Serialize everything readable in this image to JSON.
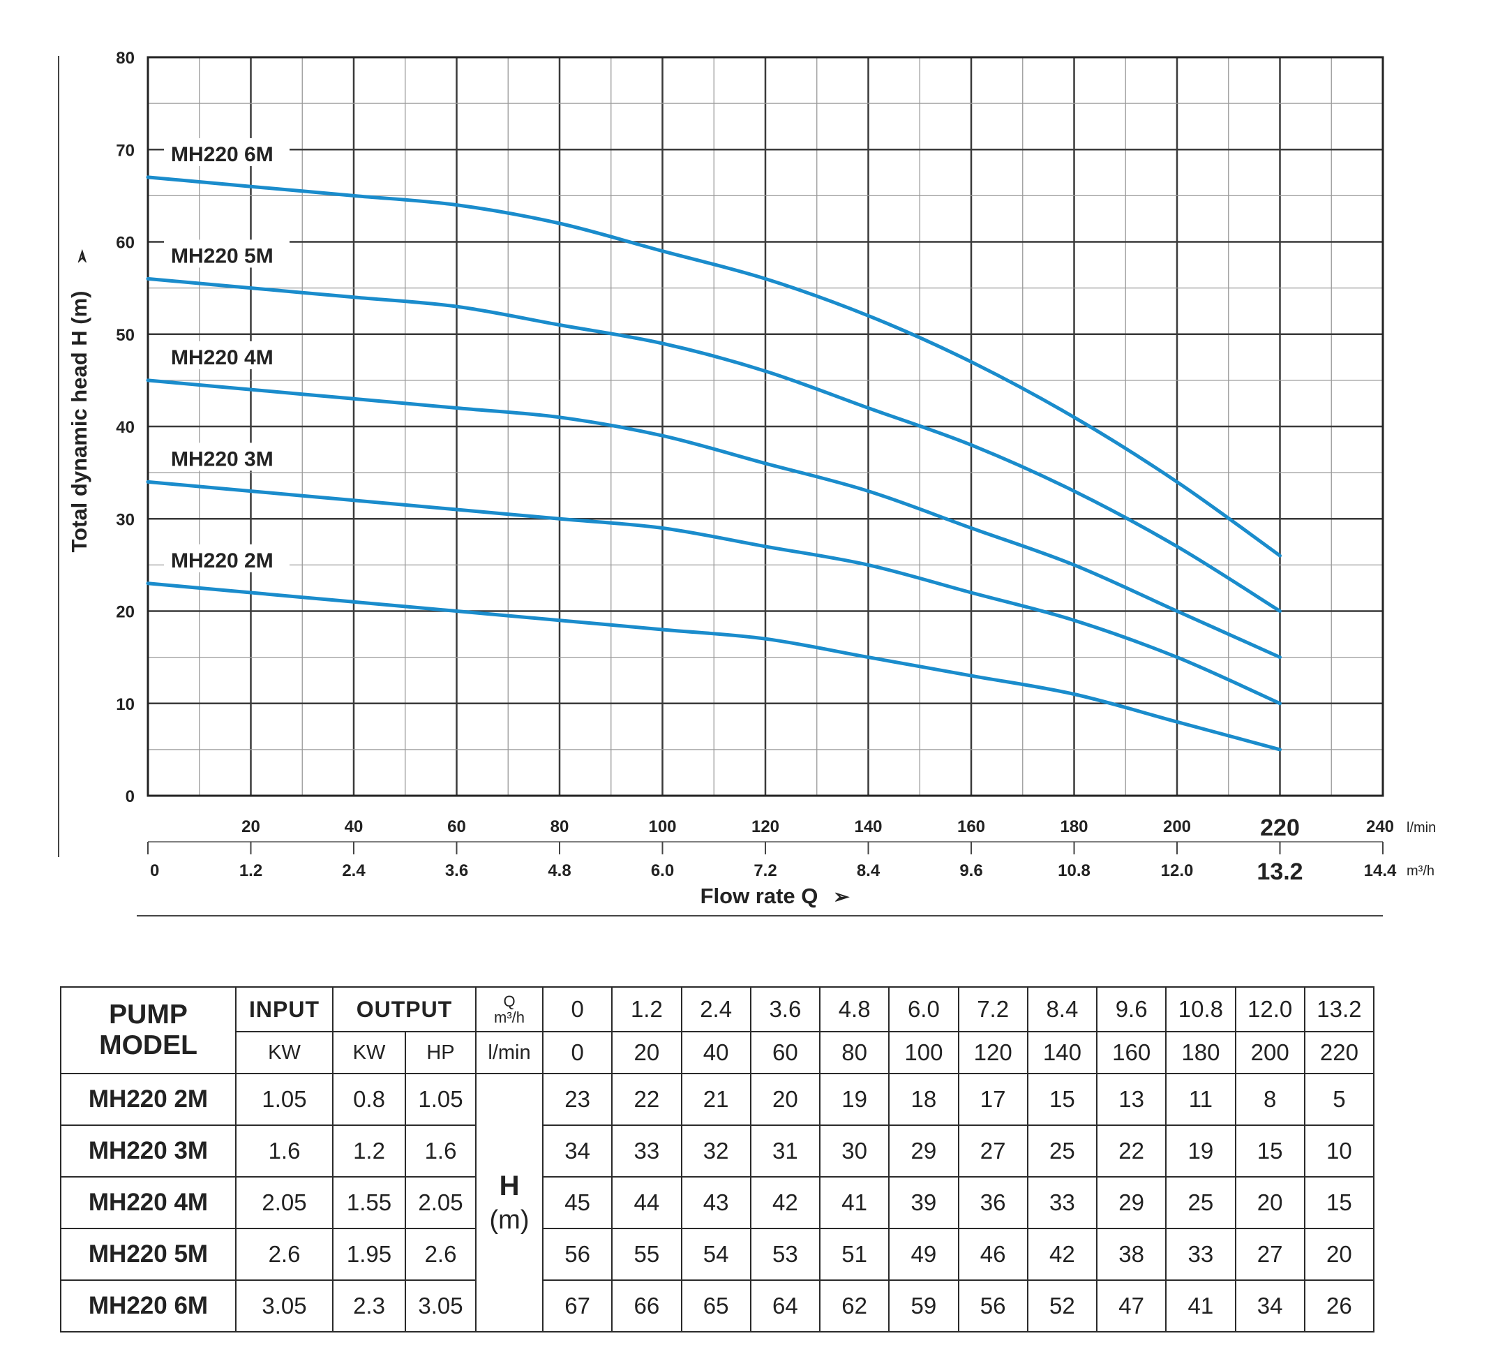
{
  "chart_data": {
    "type": "line",
    "ylabel": "Total dynamic head H (m)",
    "xlabel": "Flow rate Q",
    "ylim": [
      0,
      80
    ],
    "y_ticks": [
      "0",
      "10",
      "20",
      "30",
      "40",
      "50",
      "60",
      "70",
      "80"
    ],
    "x_lmin": [
      0,
      20,
      40,
      60,
      80,
      100,
      120,
      140,
      160,
      180,
      200,
      220
    ],
    "x_lmin_ticks": [
      "20",
      "40",
      "60",
      "80",
      "100",
      "120",
      "140",
      "160",
      "180",
      "200",
      "220",
      "240"
    ],
    "x_lmin_unit": "l/min",
    "x_m3h_ticks": [
      "0",
      "1.2",
      "2.4",
      "3.6",
      "4.8",
      "6.0",
      "7.2",
      "8.4",
      "9.6",
      "10.8",
      "12.0",
      "13.2",
      "14.4"
    ],
    "x_m3h_unit": "m³/h",
    "xlim": [
      0,
      240
    ],
    "grid": true,
    "line_color": "#1a8ccc",
    "series": [
      {
        "name": "MH220 6M",
        "values": [
          67,
          66,
          65,
          64,
          62,
          59,
          56,
          52,
          47,
          41,
          34,
          26
        ]
      },
      {
        "name": "MH220 5M",
        "values": [
          56,
          55,
          54,
          53,
          51,
          49,
          46,
          42,
          38,
          33,
          27,
          20
        ]
      },
      {
        "name": "MH220 4M",
        "values": [
          45,
          44,
          43,
          42,
          41,
          39,
          36,
          33,
          29,
          25,
          20,
          15
        ]
      },
      {
        "name": "MH220 3M",
        "values": [
          34,
          33,
          32,
          31,
          30,
          29,
          27,
          25,
          22,
          19,
          15,
          10
        ]
      },
      {
        "name": "MH220 2M",
        "values": [
          23,
          22,
          21,
          20,
          19,
          18,
          17,
          15,
          13,
          11,
          8,
          5
        ]
      }
    ]
  },
  "table": {
    "header": {
      "model": "PUMP MODEL",
      "input": "INPUT",
      "output": "OUTPUT",
      "q": "Q",
      "q_unit": "m³/h",
      "input_unit": "KW",
      "output_kw": "KW",
      "output_hp": "HP",
      "lmin": "l/min",
      "h": "H",
      "h_unit": "(m)"
    },
    "q_m3h": [
      "0",
      "1.2",
      "2.4",
      "3.6",
      "4.8",
      "6.0",
      "7.2",
      "8.4",
      "9.6",
      "10.8",
      "12.0",
      "13.2"
    ],
    "q_lmin": [
      "0",
      "20",
      "40",
      "60",
      "80",
      "100",
      "120",
      "140",
      "160",
      "180",
      "200",
      "220"
    ],
    "rows": [
      {
        "model": "MH220 2M",
        "input_kw": "1.05",
        "output_kw": "0.8",
        "output_hp": "1.05",
        "h": [
          "23",
          "22",
          "21",
          "20",
          "19",
          "18",
          "17",
          "15",
          "13",
          "11",
          "8",
          "5"
        ]
      },
      {
        "model": "MH220 3M",
        "input_kw": "1.6",
        "output_kw": "1.2",
        "output_hp": "1.6",
        "h": [
          "34",
          "33",
          "32",
          "31",
          "30",
          "29",
          "27",
          "25",
          "22",
          "19",
          "15",
          "10"
        ]
      },
      {
        "model": "MH220 4M",
        "input_kw": "2.05",
        "output_kw": "1.55",
        "output_hp": "2.05",
        "h": [
          "45",
          "44",
          "43",
          "42",
          "41",
          "39",
          "36",
          "33",
          "29",
          "25",
          "20",
          "15"
        ]
      },
      {
        "model": "MH220 5M",
        "input_kw": "2.6",
        "output_kw": "1.95",
        "output_hp": "2.6",
        "h": [
          "56",
          "55",
          "54",
          "53",
          "51",
          "49",
          "46",
          "42",
          "38",
          "33",
          "27",
          "20"
        ]
      },
      {
        "model": "MH220 6M",
        "input_kw": "3.05",
        "output_kw": "2.3",
        "output_hp": "3.05",
        "h": [
          "67",
          "66",
          "65",
          "64",
          "62",
          "59",
          "56",
          "52",
          "47",
          "41",
          "34",
          "26"
        ]
      }
    ]
  }
}
